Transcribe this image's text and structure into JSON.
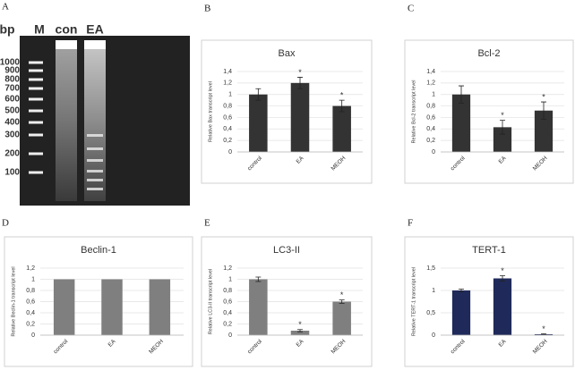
{
  "gel": {
    "panel": "A",
    "header": [
      "bp",
      "M",
      "con",
      "EA"
    ],
    "ladder": [
      "1000",
      "900",
      "800",
      "700",
      "600",
      "500",
      "400",
      "300",
      "200",
      "100"
    ]
  },
  "chart_data": [
    {
      "type": "bar",
      "panel": "B",
      "title": "Bax",
      "y_label": "Relative Bax transcript level",
      "categories": [
        "control",
        "EA",
        "MEOH"
      ],
      "values": [
        1.0,
        1.2,
        0.8
      ],
      "errors": [
        0.1,
        0.1,
        0.1
      ],
      "annotations": [
        {
          "index": 1,
          "text": "*"
        },
        {
          "index": 2,
          "text": "*"
        }
      ],
      "color": "#333333",
      "ylim": [
        0,
        1.4
      ],
      "yticks": [
        0,
        {
          "value": 0.2,
          "label": "0,2"
        },
        {
          "value": 0.4,
          "label": "0,4"
        },
        {
          "value": 0.6,
          "label": "0,6"
        },
        {
          "value": 0.8,
          "label": "0,8"
        },
        1,
        {
          "value": 1.2,
          "label": "1,2"
        },
        {
          "value": 1.4,
          "label": "1,4"
        }
      ],
      "grid": true
    },
    {
      "type": "bar",
      "panel": "C",
      "title": "Bcl-2",
      "y_label": "Relative Bcl-2 transcript level",
      "categories": [
        "control",
        "EA",
        "MEOH"
      ],
      "values": [
        1.0,
        0.43,
        0.72
      ],
      "errors": [
        0.15,
        0.12,
        0.15
      ],
      "annotations": [
        {
          "index": 1,
          "text": "*"
        },
        {
          "index": 2,
          "text": "*"
        }
      ],
      "color": "#333333",
      "ylim": [
        0,
        1.4
      ],
      "yticks": [
        0,
        {
          "value": 0.2,
          "label": "0,2"
        },
        {
          "value": 0.4,
          "label": "0,4"
        },
        {
          "value": 0.6,
          "label": "0,6"
        },
        {
          "value": 0.8,
          "label": "0,8"
        },
        1,
        {
          "value": 1.2,
          "label": "1,2"
        },
        {
          "value": 1.4,
          "label": "1,4"
        }
      ],
      "grid": true
    },
    {
      "type": "bar",
      "panel": "D",
      "title": "Beclin-1",
      "y_label": "Relative Beclin-1 transcript level",
      "categories": [
        "control",
        "EA",
        "MEOH"
      ],
      "values": [
        1,
        1,
        1
      ],
      "color": "#7f7f7f",
      "ylim": [
        0,
        1.2
      ],
      "yticks": [
        0,
        {
          "value": 0.2,
          "label": "0,2"
        },
        {
          "value": 0.4,
          "label": "0,4"
        },
        {
          "value": 0.6,
          "label": "0,6"
        },
        {
          "value": 0.8,
          "label": "0,8"
        },
        1,
        {
          "value": 1.2,
          "label": "1,2"
        }
      ],
      "grid": true
    },
    {
      "type": "bar",
      "panel": "E",
      "title": "LC3-II",
      "y_label": "Relative LC3-II transcript level",
      "categories": [
        "control",
        "EA",
        "MEOH"
      ],
      "values": [
        1.0,
        0.08,
        0.6
      ],
      "errors": [
        0.04,
        0.02,
        0.03
      ],
      "annotations": [
        {
          "index": 1,
          "text": "*"
        },
        {
          "index": 2,
          "text": "*"
        }
      ],
      "color": "#7f7f7f",
      "ylim": [
        0,
        1.2
      ],
      "yticks": [
        0,
        {
          "value": 0.2,
          "label": "0,2"
        },
        {
          "value": 0.4,
          "label": "0,4"
        },
        {
          "value": 0.6,
          "label": "0,6"
        },
        {
          "value": 0.8,
          "label": "0,8"
        },
        1,
        {
          "value": 1.2,
          "label": "1,2"
        }
      ],
      "grid": true
    },
    {
      "type": "bar",
      "panel": "F",
      "title": "TERT-1",
      "y_label": "Relative TERT-1 transcript level",
      "categories": [
        "control",
        "EA",
        "MEOH"
      ],
      "values": [
        1.0,
        1.27,
        0.02
      ],
      "errors": [
        0.03,
        0.06,
        0.01
      ],
      "annotations": [
        {
          "index": 1,
          "text": "*"
        },
        {
          "index": 2,
          "text": "*"
        }
      ],
      "color": "#1f2a5a",
      "ylim": [
        0,
        1.5
      ],
      "yticks": [
        0,
        {
          "value": 0.5,
          "label": "0,5"
        },
        1,
        {
          "value": 1.5,
          "label": "1,5"
        }
      ],
      "grid": true
    }
  ]
}
